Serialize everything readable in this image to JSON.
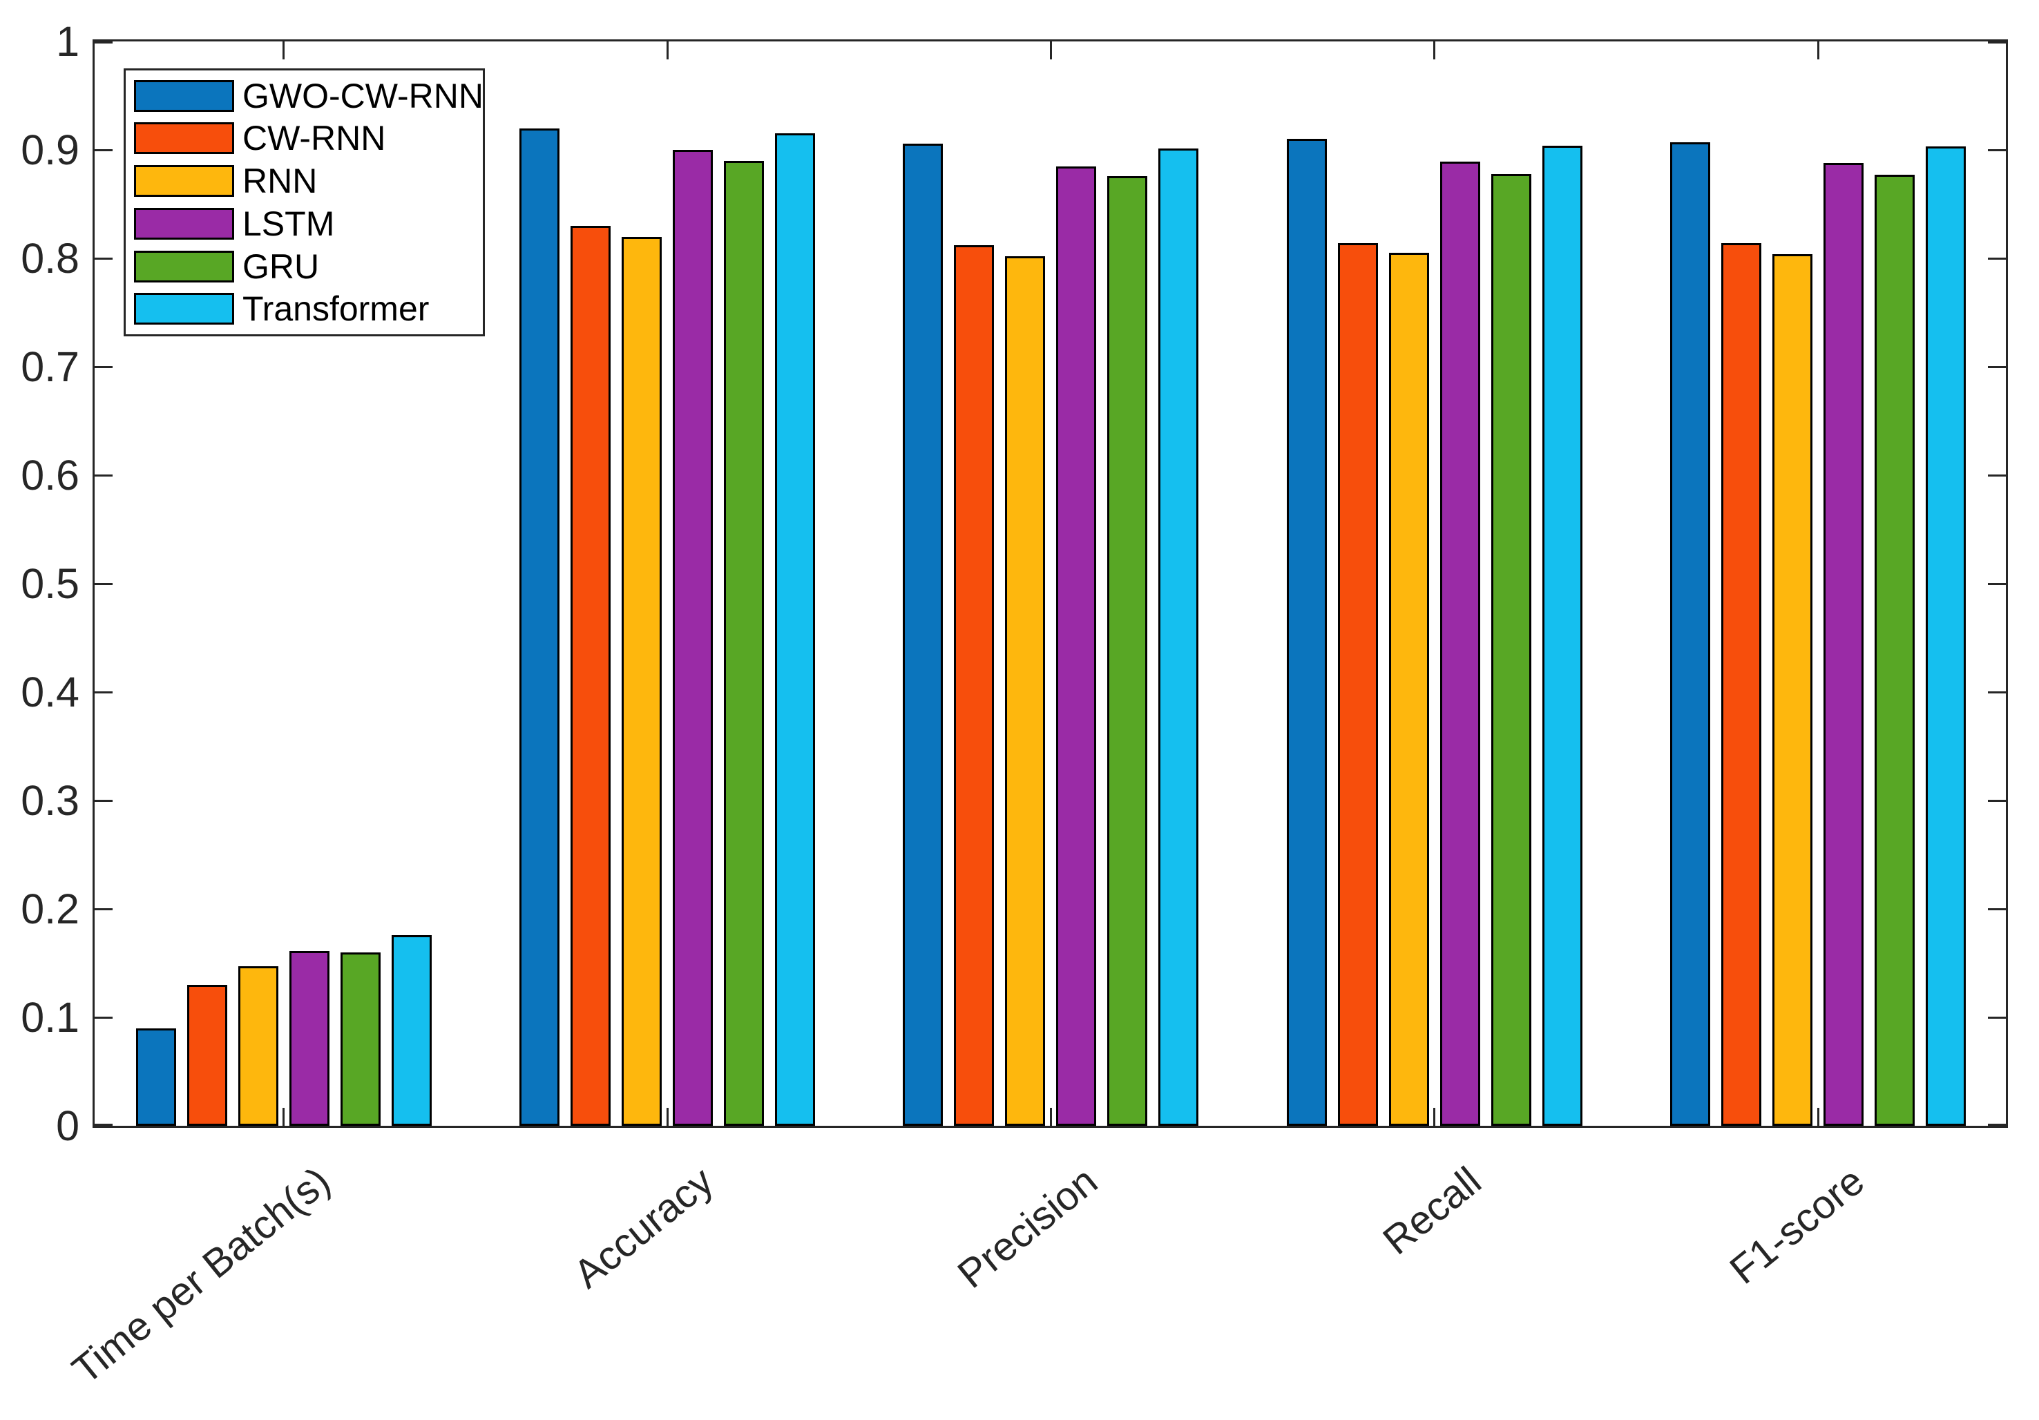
{
  "figure": {
    "background": "#ffffff",
    "axis_color": "#262626",
    "bar_edge_color": "#000000",
    "text_color": "#262626"
  },
  "chart_data": {
    "type": "bar",
    "title": "",
    "xlabel": "",
    "ylabel": "",
    "categories": [
      "Time per Batch(s)",
      "Accuracy",
      "Precision",
      "Recall",
      "F1-score"
    ],
    "series": [
      {
        "name": "GWO-CW-RNN",
        "color": "#0B75BD",
        "values": [
          0.09,
          0.92,
          0.906,
          0.91,
          0.907
        ]
      },
      {
        "name": "CW-RNN",
        "color": "#F74E0C",
        "values": [
          0.13,
          0.83,
          0.812,
          0.814,
          0.814
        ]
      },
      {
        "name": "RNN",
        "color": "#FEB70D",
        "values": [
          0.147,
          0.82,
          0.802,
          0.805,
          0.804
        ]
      },
      {
        "name": "LSTM",
        "color": "#9A2BA6",
        "values": [
          0.161,
          0.9,
          0.885,
          0.889,
          0.888
        ]
      },
      {
        "name": "GRU",
        "color": "#58A725",
        "values": [
          0.16,
          0.89,
          0.876,
          0.878,
          0.877
        ]
      },
      {
        "name": "Transformer",
        "color": "#15BFEF",
        "values": [
          0.176,
          0.915,
          0.901,
          0.904,
          0.903
        ]
      }
    ],
    "ylim": [
      0,
      1
    ],
    "yticks": [
      0,
      0.1,
      0.2,
      0.3,
      0.4,
      0.5,
      0.6,
      0.7,
      0.8,
      0.9,
      1
    ],
    "ytick_labels": [
      "0",
      "0.1",
      "0.2",
      "0.3",
      "0.4",
      "0.5",
      "0.6",
      "0.7",
      "0.8",
      "0.9",
      "1"
    ],
    "xtick_label_rotation_deg": 39,
    "grid": false,
    "legend_position": "top-left"
  }
}
